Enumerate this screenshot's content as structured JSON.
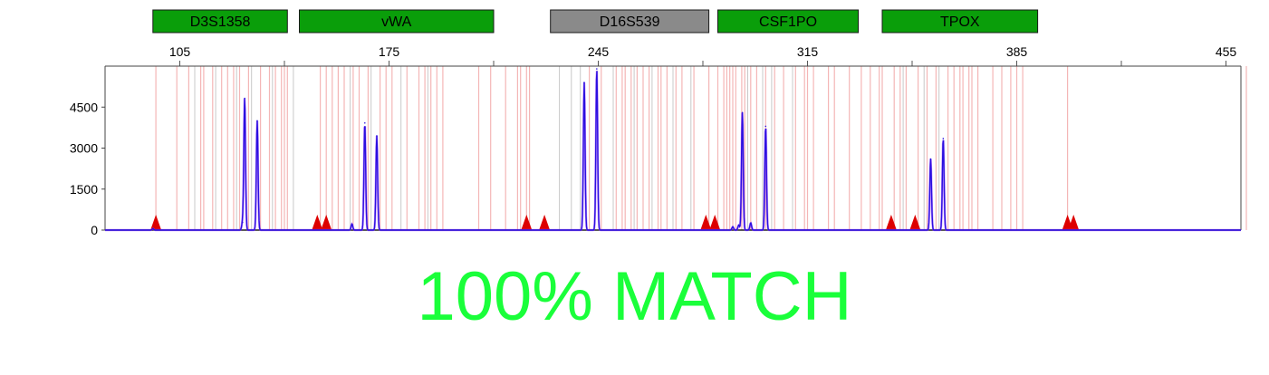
{
  "result_text": "100% MATCH",
  "colors": {
    "locus_green": "#0a9e0a",
    "locus_gray": "#8a8a8a",
    "trace": "#2a10e0",
    "trace_secondary": "#a040ff",
    "bin_line": "#f4b6b6",
    "gray_bin_line": "#c8c8c8",
    "marker": "#dd0000",
    "result": "#1aff3a"
  },
  "chart_data": {
    "type": "line",
    "title": "",
    "xlabel": "",
    "ylabel": "",
    "xlim": [
      80,
      460
    ],
    "ylim": [
      0,
      6000
    ],
    "x_ticks": [
      "105",
      "175",
      "245",
      "315",
      "385",
      "455"
    ],
    "y_ticks": [
      "0",
      "1500",
      "3000",
      "4500"
    ],
    "grid": false,
    "loci": [
      {
        "name": "D3S1358",
        "start": 96,
        "end": 141,
        "highlight": false
      },
      {
        "name": "vWA",
        "start": 145,
        "end": 210,
        "highlight": false
      },
      {
        "name": "D16S539",
        "start": 229,
        "end": 282,
        "highlight": true
      },
      {
        "name": "CSF1PO",
        "start": 285,
        "end": 332,
        "highlight": false
      },
      {
        "name": "TPOX",
        "start": 340,
        "end": 392,
        "highlight": false
      }
    ],
    "peaks": [
      {
        "x": 96,
        "height": 50
      },
      {
        "x": 126,
        "height": 280
      },
      {
        "x": 126.7,
        "height": 4820
      },
      {
        "x": 130.9,
        "height": 4000
      },
      {
        "x": 162.6,
        "height": 220
      },
      {
        "x": 166.9,
        "height": 3920
      },
      {
        "x": 170.9,
        "height": 3450
      },
      {
        "x": 240.3,
        "height": 5400
      },
      {
        "x": 244.5,
        "height": 5900
      },
      {
        "x": 290,
        "height": 120
      },
      {
        "x": 292,
        "height": 180
      },
      {
        "x": 293.2,
        "height": 4300
      },
      {
        "x": 296,
        "height": 260
      },
      {
        "x": 301.0,
        "height": 3800
      },
      {
        "x": 356.2,
        "height": 2600
      },
      {
        "x": 360.4,
        "height": 3350
      }
    ],
    "markers": [
      97,
      151,
      154,
      221,
      227,
      281,
      284,
      343,
      351,
      402,
      404
    ],
    "bins_red": [
      97,
      104,
      108,
      112,
      113,
      116,
      119,
      121,
      123,
      125,
      128,
      132,
      135,
      137,
      139,
      140,
      141,
      152,
      154,
      156,
      158,
      160,
      163,
      165,
      168,
      172,
      174,
      176,
      181,
      185,
      187,
      189,
      191,
      193,
      205,
      209,
      214,
      218,
      219,
      221,
      222,
      242,
      246,
      251,
      253,
      254,
      256,
      258,
      260,
      262,
      265,
      266,
      268,
      271,
      273,
      277,
      282,
      285,
      287,
      288,
      289,
      290,
      291,
      293,
      294,
      296,
      298,
      301,
      304,
      307,
      311,
      314,
      315,
      317,
      322,
      324,
      329,
      333,
      336,
      339,
      340,
      344,
      346,
      348,
      352,
      355,
      358,
      362,
      364,
      366,
      367,
      369,
      370,
      372,
      377,
      380,
      383,
      385,
      387,
      402,
      465
    ],
    "bins_gray": [
      110,
      117,
      124,
      129,
      136,
      143,
      162,
      169,
      179,
      188,
      232,
      236,
      239,
      250,
      257,
      263,
      270,
      276,
      295,
      300,
      303,
      310,
      347,
      354,
      359
    ]
  }
}
